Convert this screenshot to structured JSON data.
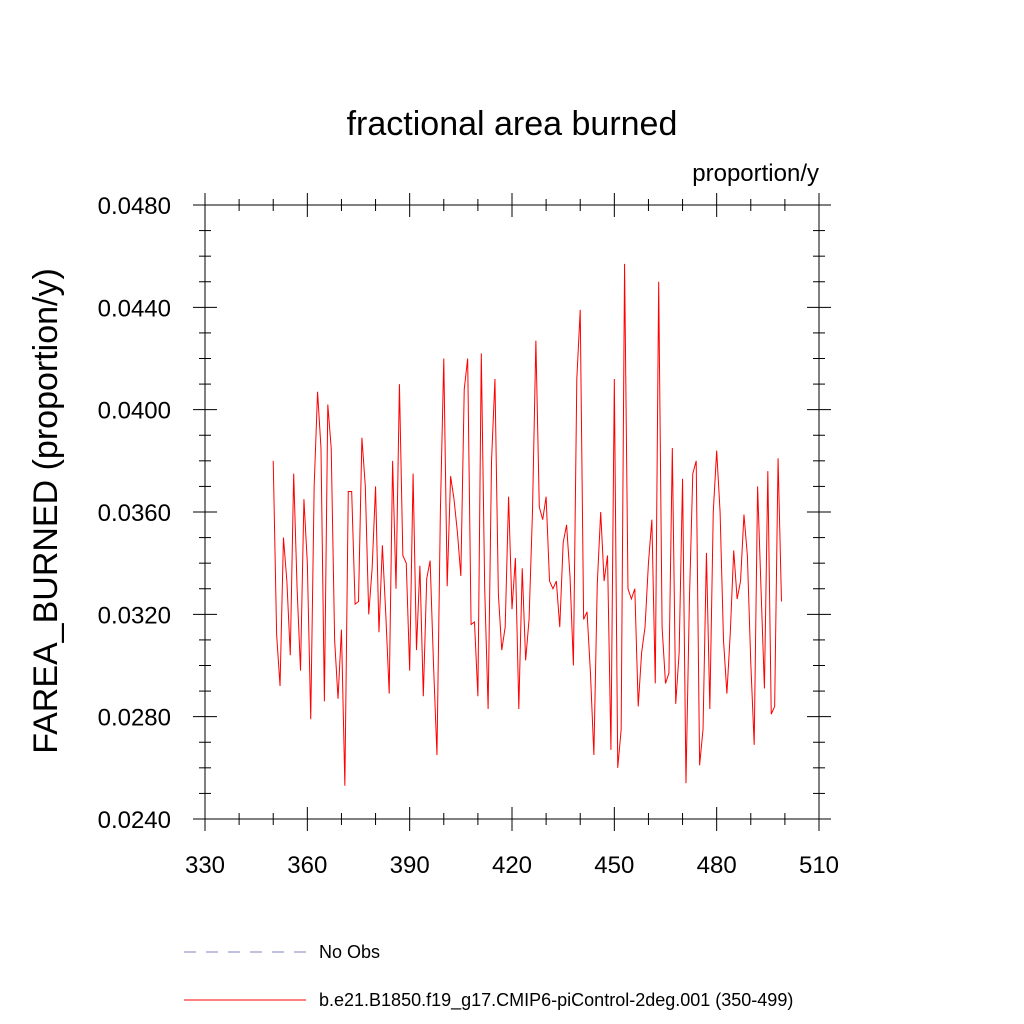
{
  "chart_data": {
    "type": "line",
    "title": "fractional area burned",
    "units_label": "proportion/y",
    "xlabel": "",
    "ylabel": "FAREA_BURNED  (proportion/y)",
    "xlim": [
      330,
      510
    ],
    "ylim": [
      0.024,
      0.048
    ],
    "x_ticks": [
      "330",
      "360",
      "390",
      "420",
      "450",
      "480",
      "510"
    ],
    "y_ticks": [
      "0.0240",
      "0.0280",
      "0.0320",
      "0.0360",
      "0.0400",
      "0.0440",
      "0.0480"
    ],
    "grid": false,
    "legend_position": "bottom",
    "series": [
      {
        "name": "No Obs",
        "color": "#8080c0",
        "style": "dashed",
        "values": []
      },
      {
        "name": "b.e21.B1850.f19_g17.CMIP6-piControl-2deg.001 (350-499)",
        "color": "#ff0000",
        "style": "solid",
        "x_start": 350,
        "values": [
          0.038,
          0.0312,
          0.0292,
          0.035,
          0.0333,
          0.0304,
          0.0375,
          0.033,
          0.0298,
          0.0365,
          0.034,
          0.0279,
          0.037,
          0.0407,
          0.0385,
          0.0286,
          0.0402,
          0.0385,
          0.031,
          0.0287,
          0.0314,
          0.0253,
          0.0368,
          0.0368,
          0.0324,
          0.0325,
          0.0389,
          0.037,
          0.032,
          0.0338,
          0.037,
          0.0313,
          0.0347,
          0.032,
          0.0289,
          0.038,
          0.033,
          0.041,
          0.0343,
          0.034,
          0.0298,
          0.0375,
          0.0306,
          0.0339,
          0.0288,
          0.0334,
          0.0341,
          0.03,
          0.0265,
          0.036,
          0.042,
          0.0331,
          0.0374,
          0.0365,
          0.0352,
          0.0335,
          0.0408,
          0.042,
          0.0316,
          0.0317,
          0.0288,
          0.0422,
          0.033,
          0.0283,
          0.038,
          0.0412,
          0.0328,
          0.0306,
          0.0315,
          0.0366,
          0.0322,
          0.0342,
          0.0283,
          0.0338,
          0.0302,
          0.0318,
          0.036,
          0.0427,
          0.0362,
          0.0357,
          0.0366,
          0.0333,
          0.033,
          0.0333,
          0.0315,
          0.0348,
          0.0355,
          0.0335,
          0.03,
          0.0412,
          0.0439,
          0.0318,
          0.0321,
          0.0297,
          0.0265,
          0.0332,
          0.036,
          0.0333,
          0.0343,
          0.0267,
          0.0412,
          0.026,
          0.0275,
          0.0457,
          0.033,
          0.0326,
          0.033,
          0.0284,
          0.0305,
          0.0315,
          0.034,
          0.0357,
          0.0293,
          0.045,
          0.0315,
          0.0293,
          0.0297,
          0.0385,
          0.0285,
          0.0305,
          0.0373,
          0.0254,
          0.0325,
          0.0375,
          0.038,
          0.0261,
          0.0275,
          0.0344,
          0.0283,
          0.036,
          0.0384,
          0.036,
          0.031,
          0.0289,
          0.0313,
          0.0345,
          0.0326,
          0.0333,
          0.0359,
          0.0343,
          0.0301,
          0.0269,
          0.037,
          0.033,
          0.0291,
          0.0376,
          0.0281,
          0.0284,
          0.0381,
          0.0325
        ]
      }
    ]
  }
}
